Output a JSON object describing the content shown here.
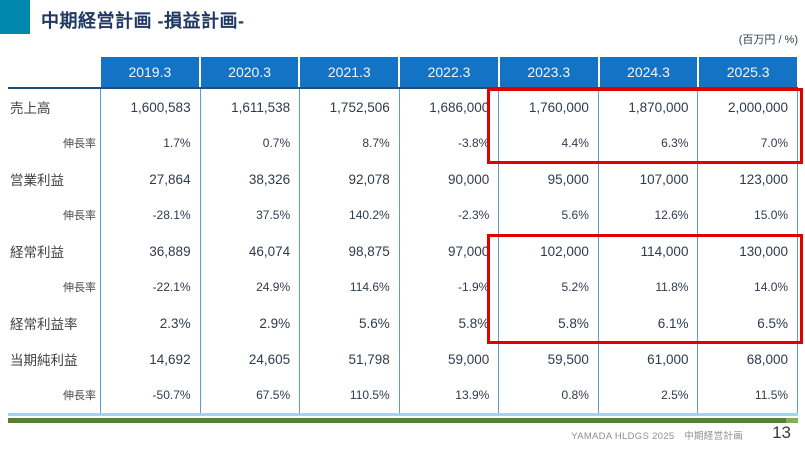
{
  "slide": {
    "title": "中期経営計画 -損益計画-",
    "unit_label": "(百万円 / %)",
    "footer_text": "YAMADA HLDGS 2025　中期経営計画",
    "page_number": "13"
  },
  "colors": {
    "header_blue": "#1473c4",
    "divider_blue": "#5b9bd5",
    "header_underline_navy": "#1f4e79",
    "table_bottom_light_blue": "#9fd5ee",
    "title_navy": "#1f3864",
    "accent_teal": "#0087ad",
    "highlight_red": "#e00000",
    "footer_green": "#538135"
  },
  "chart_data": {
    "type": "table",
    "title": "中期経営計画 -損益計画-",
    "unit": "百万円 / %",
    "columns": [
      "2019.3",
      "2020.3",
      "2021.3",
      "2022.3",
      "2023.3",
      "2024.3",
      "2025.3"
    ],
    "rows": [
      {
        "label": "売上高",
        "type": "main",
        "values": [
          "1,600,583",
          "1,611,538",
          "1,752,506",
          "1,686,000",
          "1,760,000",
          "1,870,000",
          "2,000,000"
        ]
      },
      {
        "label": "伸長率",
        "type": "sub",
        "values": [
          "1.7%",
          "0.7%",
          "8.7%",
          "-3.8%",
          "4.4%",
          "6.3%",
          "7.0%"
        ]
      },
      {
        "label": "営業利益",
        "type": "main",
        "values": [
          "27,864",
          "38,326",
          "92,078",
          "90,000",
          "95,000",
          "107,000",
          "123,000"
        ]
      },
      {
        "label": "伸長率",
        "type": "sub",
        "values": [
          "-28.1%",
          "37.5%",
          "140.2%",
          "-2.3%",
          "5.6%",
          "12.6%",
          "15.0%"
        ]
      },
      {
        "label": "経常利益",
        "type": "main",
        "values": [
          "36,889",
          "46,074",
          "98,875",
          "97,000",
          "102,000",
          "114,000",
          "130,000"
        ]
      },
      {
        "label": "伸長率",
        "type": "sub",
        "values": [
          "-22.1%",
          "24.9%",
          "114.6%",
          "-1.9%",
          "5.2%",
          "11.8%",
          "14.0%"
        ]
      },
      {
        "label": "経常利益率",
        "type": "main",
        "values": [
          "2.3%",
          "2.9%",
          "5.6%",
          "5.8%",
          "5.8%",
          "6.1%",
          "6.5%"
        ]
      },
      {
        "label": "当期純利益",
        "type": "main",
        "values": [
          "14,692",
          "24,605",
          "51,798",
          "59,000",
          "59,500",
          "61,000",
          "68,000"
        ]
      },
      {
        "label": "伸長率",
        "type": "sub",
        "values": [
          "-50.7%",
          "67.5%",
          "110.5%",
          "13.9%",
          "0.8%",
          "2.5%",
          "11.5%"
        ]
      }
    ],
    "highlights": [
      {
        "rows": [
          0,
          1
        ],
        "columns": [
          "2023.3",
          "2024.3",
          "2025.3"
        ]
      },
      {
        "rows": [
          4,
          5,
          6
        ],
        "columns": [
          "2023.3",
          "2024.3",
          "2025.3"
        ]
      }
    ]
  }
}
